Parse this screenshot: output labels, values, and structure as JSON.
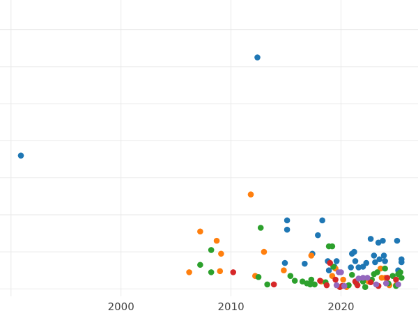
{
  "chart_data": {
    "type": "scatter",
    "title": "",
    "xlabel": "",
    "ylabel": "",
    "x_ticks": [
      2000,
      2010,
      2020
    ],
    "xlim": [
      1989,
      2027
    ],
    "ylim": [
      -0.2,
      7.8
    ],
    "grid": true,
    "legend": "none",
    "series": [
      {
        "color": "#1f77b4",
        "points": [
          [
            1990.9,
            3.6
          ],
          [
            2012.4,
            6.25
          ],
          [
            2015.1,
            1.85
          ],
          [
            2015.1,
            1.6
          ],
          [
            2018.3,
            1.85
          ],
          [
            2017.9,
            1.45
          ],
          [
            2014.9,
            0.7
          ],
          [
            2016.7,
            0.68
          ],
          [
            2017.4,
            0.95
          ],
          [
            2018.8,
            0.75
          ],
          [
            2019.6,
            0.75
          ],
          [
            2018.9,
            0.5
          ],
          [
            2021.0,
            0.95
          ],
          [
            2021.2,
            1.0
          ],
          [
            2021.3,
            0.75
          ],
          [
            2020.9,
            0.58
          ],
          [
            2021.6,
            0.58
          ],
          [
            2022.0,
            0.6
          ],
          [
            2022.3,
            0.7
          ],
          [
            2022.7,
            1.35
          ],
          [
            2023.0,
            0.9
          ],
          [
            2023.1,
            0.72
          ],
          [
            2023.4,
            1.25
          ],
          [
            2023.8,
            1.3
          ],
          [
            2023.9,
            0.9
          ],
          [
            2024.0,
            0.75
          ],
          [
            2023.5,
            0.8
          ],
          [
            2025.1,
            1.3
          ],
          [
            2025.5,
            0.8
          ],
          [
            2025.5,
            0.72
          ],
          [
            2025.2,
            0.5
          ],
          [
            2019.4,
            0.6
          ]
        ]
      },
      {
        "color": "#ff7f0e",
        "points": [
          [
            2006.2,
            0.45
          ],
          [
            2007.2,
            1.55
          ],
          [
            2008.7,
            1.3
          ],
          [
            2009.1,
            0.95
          ],
          [
            2009.0,
            0.48
          ],
          [
            2011.8,
            2.55
          ],
          [
            2012.2,
            0.35
          ],
          [
            2013.0,
            1.0
          ],
          [
            2014.8,
            0.5
          ],
          [
            2017.3,
            0.9
          ],
          [
            2018.2,
            0.2
          ],
          [
            2019.2,
            0.35
          ],
          [
            2019.5,
            0.55
          ],
          [
            2020.2,
            0.25
          ],
          [
            2022.5,
            0.2
          ],
          [
            2023.7,
            0.3
          ],
          [
            2024.0,
            0.3
          ],
          [
            2024.4,
            0.1
          ],
          [
            2025.0,
            0.1
          ],
          [
            2020.5,
            0.05
          ],
          [
            2023.6,
            0.55
          ]
        ]
      },
      {
        "color": "#2ca02c",
        "points": [
          [
            2007.2,
            0.65
          ],
          [
            2008.2,
            1.05
          ],
          [
            2008.2,
            0.45
          ],
          [
            2012.7,
            1.65
          ],
          [
            2012.5,
            0.32
          ],
          [
            2013.3,
            0.12
          ],
          [
            2015.4,
            0.35
          ],
          [
            2015.8,
            0.22
          ],
          [
            2016.5,
            0.2
          ],
          [
            2016.9,
            0.15
          ],
          [
            2017.3,
            0.25
          ],
          [
            2017.2,
            0.12
          ],
          [
            2017.6,
            0.12
          ],
          [
            2018.9,
            1.15
          ],
          [
            2019.2,
            1.15
          ],
          [
            2018.6,
            0.18
          ],
          [
            2019.3,
            0.6
          ],
          [
            2021.0,
            0.38
          ],
          [
            2021.4,
            0.15
          ],
          [
            2022.0,
            0.2
          ],
          [
            2022.8,
            0.25
          ],
          [
            2023.0,
            0.4
          ],
          [
            2023.3,
            0.45
          ],
          [
            2024.0,
            0.55
          ],
          [
            2024.7,
            0.35
          ],
          [
            2025.2,
            0.4
          ],
          [
            2025.4,
            0.45
          ],
          [
            2025.5,
            0.3
          ],
          [
            2024.3,
            0.15
          ],
          [
            2025.0,
            0.08
          ],
          [
            2020.7,
            0.1
          ],
          [
            2022.2,
            0.05
          ]
        ]
      },
      {
        "color": "#d62728",
        "points": [
          [
            2010.2,
            0.45
          ],
          [
            2013.9,
            0.12
          ],
          [
            2018.1,
            0.22
          ],
          [
            2018.7,
            0.1
          ],
          [
            2019.0,
            0.7
          ],
          [
            2019.5,
            0.25
          ],
          [
            2020.1,
            0.08
          ],
          [
            2021.3,
            0.2
          ],
          [
            2021.5,
            0.1
          ],
          [
            2022.7,
            0.18
          ],
          [
            2023.4,
            0.08
          ],
          [
            2024.2,
            0.3
          ],
          [
            2025.0,
            0.25
          ],
          [
            2019.9,
            0.05
          ]
        ]
      },
      {
        "color": "#9467bd",
        "points": [
          [
            2019.8,
            0.45
          ],
          [
            2020.0,
            0.45
          ],
          [
            2019.6,
            0.1
          ],
          [
            2021.6,
            0.28
          ],
          [
            2022.0,
            0.3
          ],
          [
            2022.4,
            0.3
          ],
          [
            2023.2,
            0.12
          ],
          [
            2024.1,
            0.15
          ],
          [
            2025.2,
            0.12
          ],
          [
            2020.3,
            0.08
          ]
        ]
      }
    ]
  }
}
